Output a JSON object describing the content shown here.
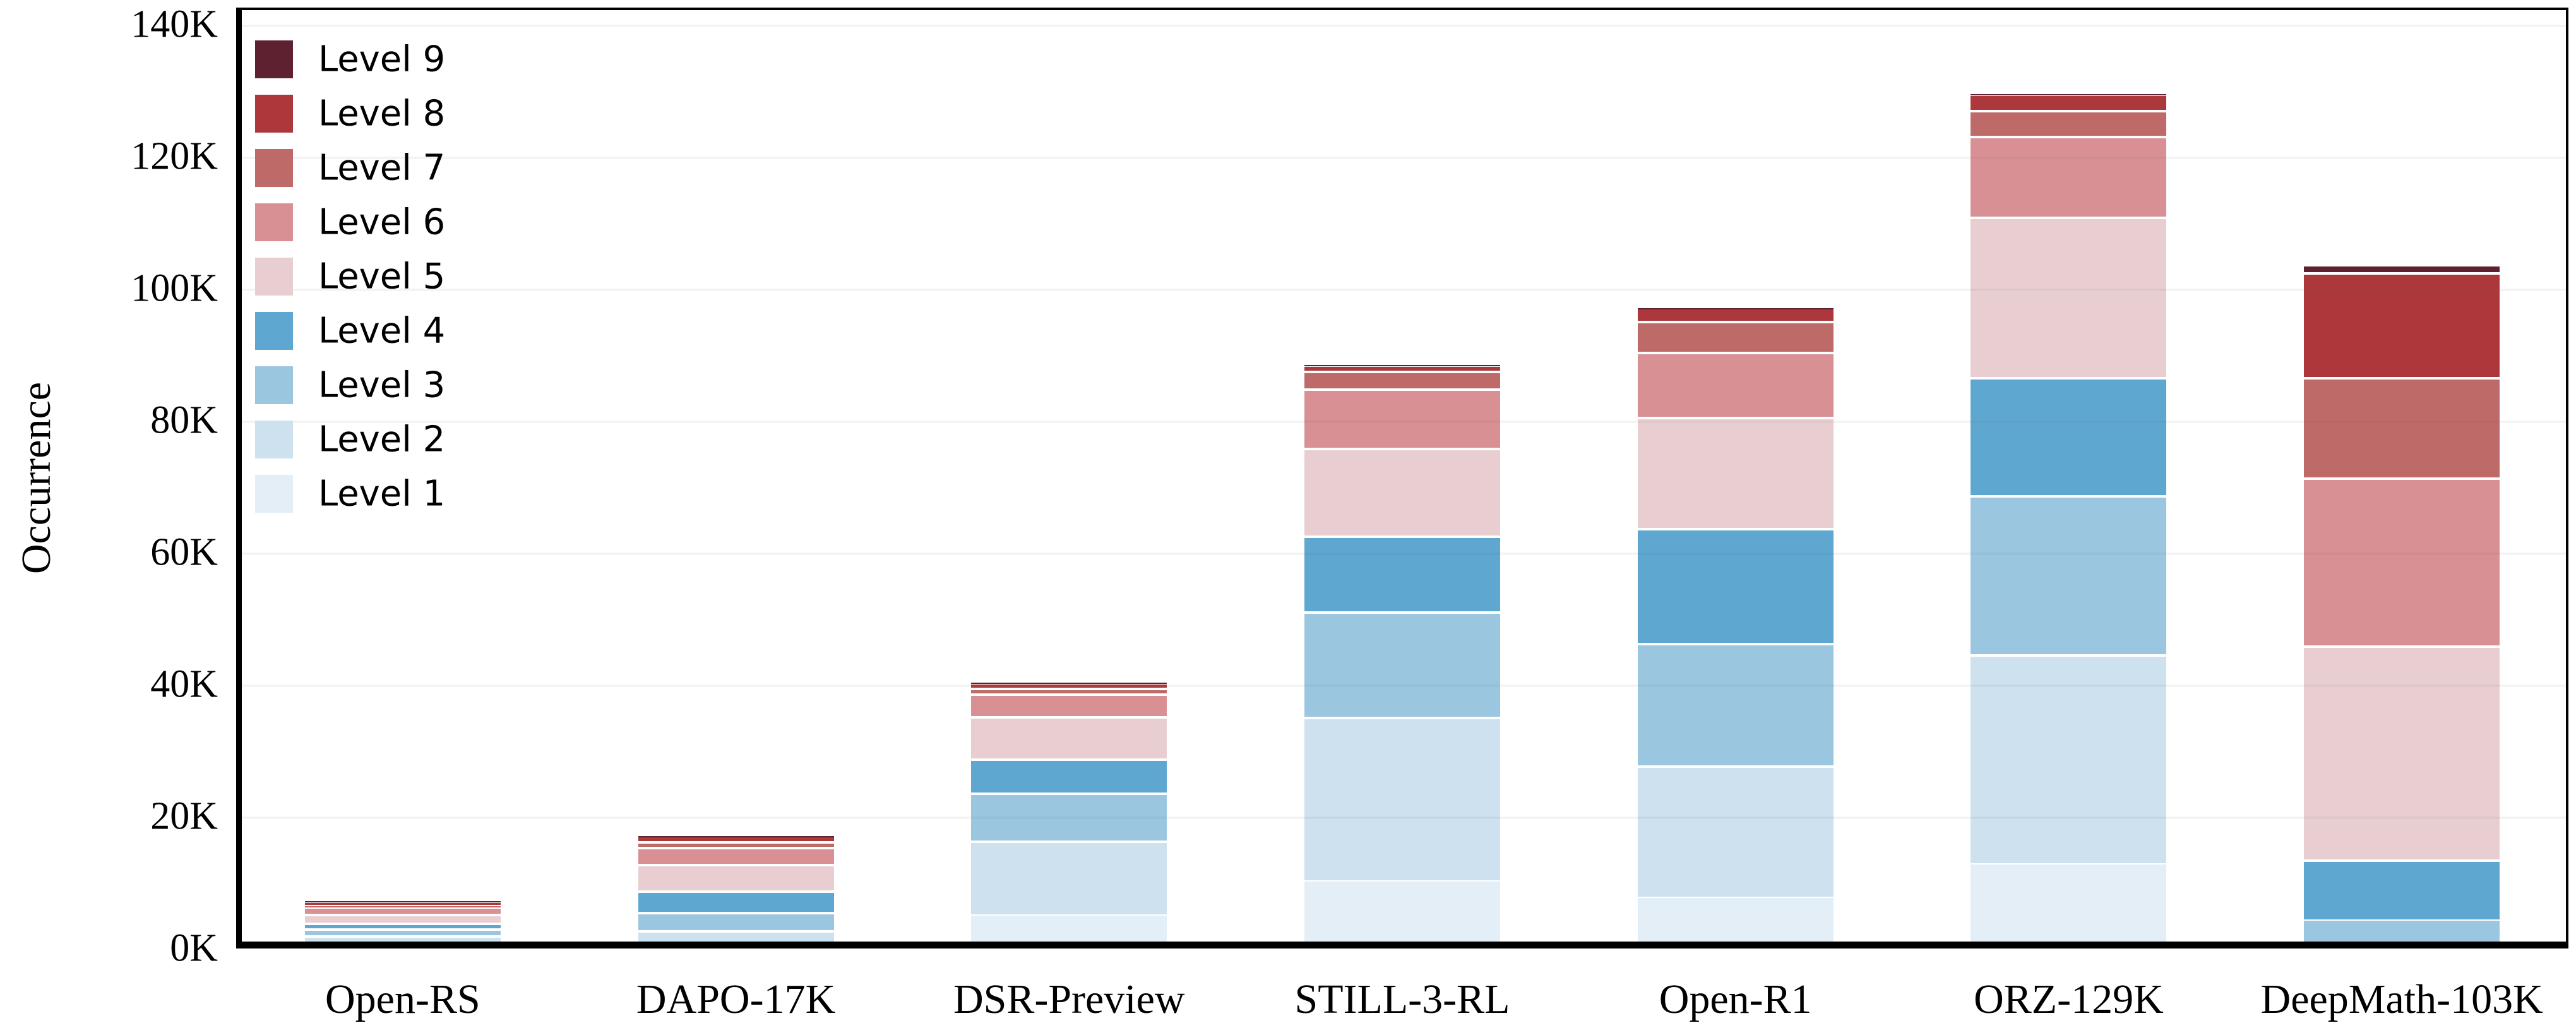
{
  "chart_data": {
    "type": "bar",
    "stacked": true,
    "title": "",
    "ylabel": "Occurrence",
    "unit": "K",
    "ylim_k": [
      0,
      140
    ],
    "ytick_step_k": 20,
    "ytick_labels": [
      "0K",
      "20K",
      "40K",
      "60K",
      "80K",
      "100K",
      "120K",
      "140K"
    ],
    "grid": true,
    "legend_position": "top-left",
    "legend_order_top_to_bottom": [
      "Level 9",
      "Level 8",
      "Level 7",
      "Level 6",
      "Level 5",
      "Level 4",
      "Level 3",
      "Level 2",
      "Level 1"
    ],
    "categories": [
      "Open-RS",
      "DAPO-17K",
      "DSR-Preview",
      "STILL-3-RL",
      "Open-R1",
      "ORZ-129K",
      "DeepMath-103K"
    ],
    "series": [
      {
        "name": "Level 1",
        "color": "#e3eef7",
        "values_k": [
          0.4,
          0.2,
          5.0,
          10.1,
          7.7,
          12.7,
          0.0
        ]
      },
      {
        "name": "Level 2",
        "color": "#cde1ef",
        "values_k": [
          1.4,
          2.4,
          11.2,
          24.8,
          19.9,
          31.7,
          0.0
        ]
      },
      {
        "name": "Level 3",
        "color": "#9bc6e0",
        "values_k": [
          1.1,
          2.8,
          7.2,
          16.0,
          18.5,
          24.1,
          4.2
        ]
      },
      {
        "name": "Level 4",
        "color": "#5ea7d0",
        "values_k": [
          0.8,
          3.2,
          5.2,
          11.5,
          17.4,
          17.9,
          9.1
        ]
      },
      {
        "name": "Level 5",
        "color": "#e9ced1",
        "values_k": [
          1.4,
          4.0,
          6.4,
          13.3,
          16.9,
          24.3,
          32.4
        ]
      },
      {
        "name": "Level 6",
        "color": "#d89095",
        "values_k": [
          1.1,
          2.6,
          3.5,
          9.0,
          9.8,
          12.3,
          25.5
        ]
      },
      {
        "name": "Level 7",
        "color": "#bd6a69",
        "values_k": [
          0.25,
          0.9,
          0.8,
          2.7,
          4.7,
          3.9,
          15.2
        ]
      },
      {
        "name": "Level 8",
        "color": "#ad383b",
        "values_k": [
          0.65,
          0.9,
          0.9,
          0.9,
          2.1,
          2.5,
          15.9
        ]
      },
      {
        "name": "Level 9",
        "color": "#5d2130",
        "values_k": [
          0.05,
          0.05,
          0.1,
          0.1,
          0.05,
          0.05,
          1.2
        ]
      }
    ],
    "approx_totals_k": {
      "Open-RS": 7.1,
      "DAPO-17K": 17.0,
      "DSR-Preview": 40.2,
      "STILL-3-RL": 88.4,
      "Open-R1": 97.0,
      "ORZ-129K": 129.4,
      "DeepMath-103K": 103.5
    }
  },
  "colors": {
    "background": "#ffffff",
    "spine": "#000000",
    "gridline_rgba": "rgba(100,100,100,0.07)",
    "text": "#000000"
  }
}
